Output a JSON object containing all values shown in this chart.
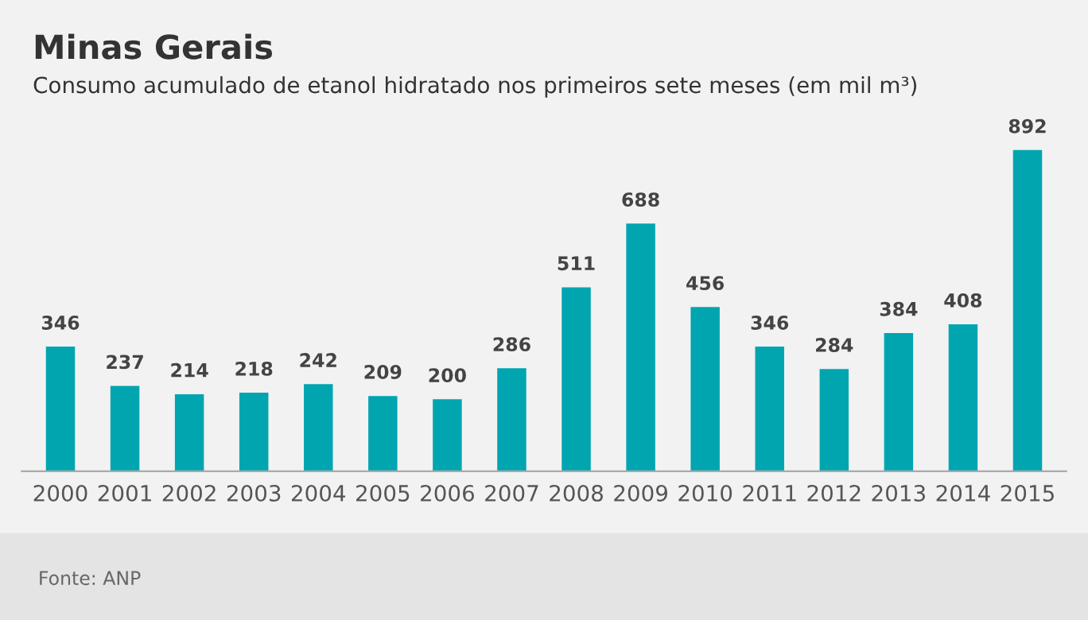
{
  "chart_data": {
    "type": "bar",
    "title": "Minas Gerais",
    "subtitle": "Consumo acumulado de etanol hidratado nos primeiros sete meses (em mil m³)",
    "categories": [
      "2000",
      "2001",
      "2002",
      "2003",
      "2004",
      "2005",
      "2006",
      "2007",
      "2008",
      "2009",
      "2010",
      "2011",
      "2012",
      "2013",
      "2014",
      "2015"
    ],
    "values": [
      346,
      237,
      214,
      218,
      242,
      209,
      200,
      286,
      511,
      688,
      456,
      346,
      284,
      384,
      408,
      892
    ],
    "color": "#00a5b0",
    "data_labels": true,
    "grid": false,
    "legend": false,
    "annotations": [
      "Fonte: ANP"
    ]
  }
}
